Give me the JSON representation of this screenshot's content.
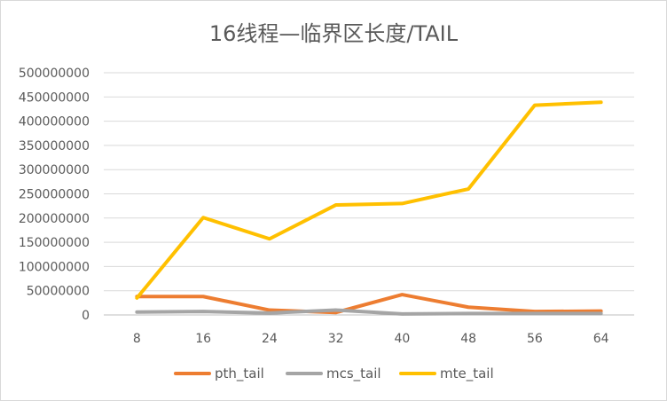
{
  "chart_data": {
    "type": "line",
    "title": "16线程—临界区长度/TAIL",
    "xlabel": "",
    "ylabel": "",
    "categories": [
      "8",
      "16",
      "24",
      "32",
      "40",
      "48",
      "56",
      "64"
    ],
    "ylim": [
      0,
      500000000
    ],
    "yticks": [
      0,
      50000000,
      100000000,
      150000000,
      200000000,
      250000000,
      300000000,
      350000000,
      400000000,
      450000000,
      500000000
    ],
    "grid": true,
    "legend": "bottom",
    "series": [
      {
        "name": "pth_tail",
        "color": "#ed7d31",
        "values": [
          38000000,
          38000000,
          10000000,
          5000000,
          42000000,
          16000000,
          7000000,
          8000000
        ]
      },
      {
        "name": "mcs_tail",
        "color": "#a5a5a5",
        "values": [
          6000000,
          7000000,
          4000000,
          10000000,
          2000000,
          3000000,
          3000000,
          3000000
        ]
      },
      {
        "name": "mte_tail",
        "color": "#ffc000",
        "values": [
          35000000,
          201000000,
          157000000,
          227000000,
          230000000,
          260000000,
          433000000,
          439000000
        ]
      }
    ]
  }
}
